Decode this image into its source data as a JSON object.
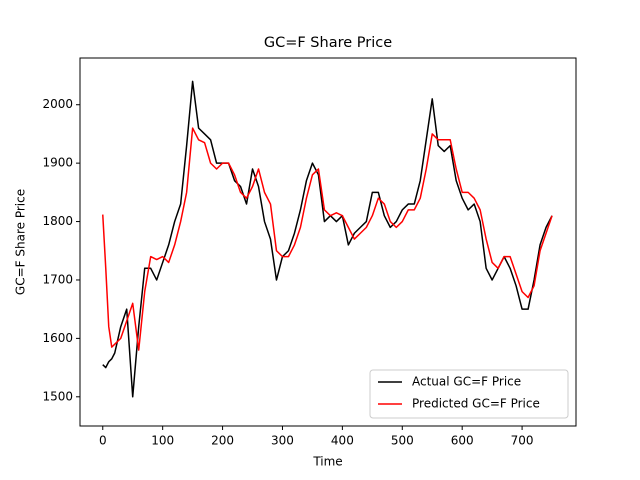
{
  "chart_data": {
    "type": "line",
    "title": "GC=F Share Price",
    "x_label": "Time",
    "y_label": "GC=F Share Price",
    "x": [
      0,
      5,
      10,
      15,
      20,
      30,
      40,
      50,
      60,
      70,
      80,
      90,
      100,
      110,
      120,
      130,
      140,
      150,
      160,
      170,
      180,
      190,
      200,
      210,
      220,
      230,
      240,
      250,
      260,
      270,
      280,
      290,
      300,
      310,
      320,
      330,
      340,
      350,
      360,
      370,
      380,
      390,
      400,
      410,
      420,
      430,
      440,
      450,
      460,
      470,
      480,
      490,
      500,
      510,
      520,
      530,
      540,
      550,
      560,
      570,
      580,
      590,
      600,
      610,
      620,
      630,
      640,
      650,
      660,
      670,
      680,
      690,
      700,
      710,
      720,
      730,
      740,
      750
    ],
    "series": [
      {
        "name": "Actual GC=F Price",
        "color": "#000000",
        "values": [
          1555,
          1550,
          1560,
          1565,
          1575,
          1620,
          1650,
          1500,
          1620,
          1720,
          1720,
          1700,
          1730,
          1760,
          1800,
          1830,
          1930,
          2040,
          1960,
          1950,
          1940,
          1900,
          1900,
          1900,
          1870,
          1860,
          1830,
          1890,
          1860,
          1800,
          1770,
          1700,
          1740,
          1750,
          1780,
          1820,
          1870,
          1900,
          1880,
          1800,
          1810,
          1800,
          1810,
          1760,
          1780,
          1790,
          1800,
          1850,
          1850,
          1810,
          1790,
          1800,
          1820,
          1830,
          1830,
          1870,
          1940,
          2010,
          1930,
          1920,
          1930,
          1870,
          1840,
          1820,
          1830,
          1800,
          1720,
          1700,
          1720,
          1740,
          1720,
          1690,
          1650,
          1650,
          1700,
          1760,
          1790,
          1810
        ]
      },
      {
        "name": "Predicted GC=F Price",
        "color": "#ff0000",
        "values": [
          1812,
          1720,
          1620,
          1585,
          1590,
          1600,
          1630,
          1660,
          1580,
          1680,
          1740,
          1735,
          1740,
          1730,
          1760,
          1800,
          1850,
          1960,
          1940,
          1935,
          1900,
          1890,
          1900,
          1900,
          1880,
          1850,
          1840,
          1860,
          1890,
          1850,
          1830,
          1750,
          1740,
          1740,
          1760,
          1790,
          1840,
          1880,
          1890,
          1820,
          1810,
          1815,
          1810,
          1790,
          1770,
          1780,
          1790,
          1810,
          1840,
          1830,
          1800,
          1790,
          1800,
          1820,
          1820,
          1840,
          1890,
          1950,
          1940,
          1940,
          1940,
          1890,
          1850,
          1850,
          1840,
          1820,
          1770,
          1730,
          1720,
          1740,
          1740,
          1710,
          1680,
          1670,
          1690,
          1750,
          1780,
          1810
        ]
      }
    ],
    "xlim": [
      -38,
      790
    ],
    "ylim": [
      1450,
      2080
    ],
    "xticks": [
      0,
      100,
      200,
      300,
      400,
      500,
      600,
      700
    ],
    "yticks": [
      1500,
      1600,
      1700,
      1800,
      1900,
      2000
    ],
    "legend": "lower right"
  }
}
